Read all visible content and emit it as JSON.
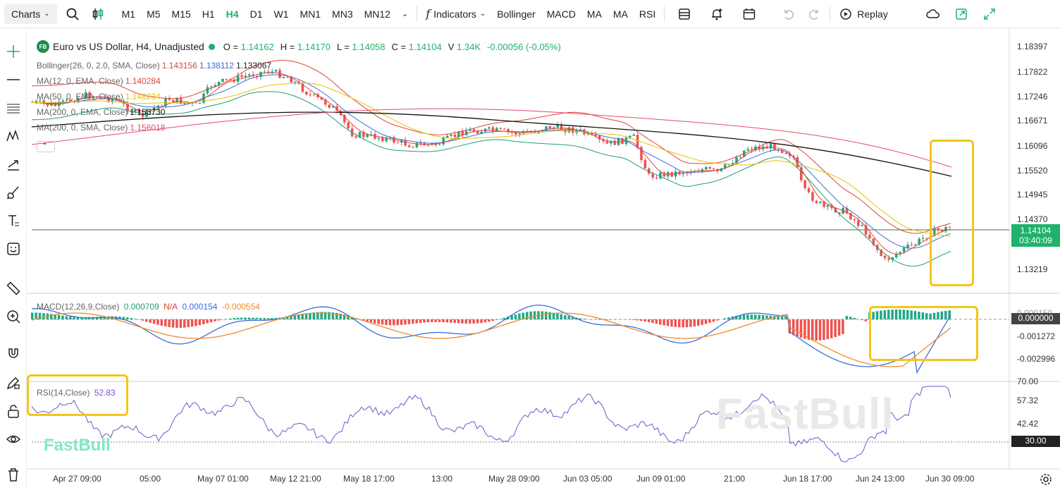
{
  "toolbar": {
    "charts_label": "Charts",
    "timeframes": [
      "M1",
      "M5",
      "M15",
      "H1",
      "H4",
      "D1",
      "W1",
      "MN1",
      "MN3",
      "MN12"
    ],
    "active_timeframe": "H4",
    "indicators_label": "Indicators",
    "indicator_shortcuts": [
      "Bollinger",
      "MACD",
      "MA",
      "MA",
      "RSI"
    ],
    "replay_label": "Replay"
  },
  "symbol": {
    "badge": "FB",
    "title": "Euro vs US Dollar, H4, Unadjusted",
    "open_label": "O =",
    "open": "1.14162",
    "high_label": "H =",
    "high": "1.14170",
    "low_label": "L =",
    "low": "1.14058",
    "close_label": "C =",
    "close": "1.14104",
    "volume_label": "V",
    "volume": "1.34K",
    "change": "-0.00056 (-0.05%)"
  },
  "overlays": [
    {
      "label": "Bollinger(26, 0, 2.0, SMA, Close)",
      "values": [
        "1.143156",
        "1.138112",
        "1.133067"
      ],
      "colors": [
        "#e0443a",
        "#3b6fd8",
        "#222"
      ]
    },
    {
      "label": "MA(12, 0, EMA, Close)",
      "values": [
        "1.140284"
      ],
      "colors": [
        "#e0443a"
      ]
    },
    {
      "label": "MA(50, 0, EMA, Close)",
      "values": [
        "1.148234"
      ],
      "colors": [
        "#e6c200"
      ]
    },
    {
      "label": "MA(200, 0, EMA, Close)",
      "values": [
        "1.153730"
      ],
      "colors": [
        "#111"
      ]
    },
    {
      "label": "MA(200, 0, SMA, Close)",
      "values": [
        "1.156018"
      ],
      "colors": [
        "#e34b6b"
      ]
    }
  ],
  "price_axis": [
    "1.18397",
    "1.17822",
    "1.17246",
    "1.16671",
    "1.16096",
    "1.15520",
    "1.14945",
    "1.14370",
    "1.13219"
  ],
  "current_price": {
    "value": "1.14104",
    "countdown": "03:40:09"
  },
  "macd": {
    "label": "MACD(12,26,9,Close)",
    "values": [
      "0.000709",
      "N/A",
      "0.000154",
      "-0.000554"
    ],
    "colors": [
      "#1f9e7a",
      "#e0443a",
      "#3b6fd8",
      "#f08a2c"
    ],
    "axis": [
      "0.000150",
      "-0.001272",
      "-0.002996"
    ],
    "zero_tag": "0.000000"
  },
  "rsi": {
    "label": "RSI(14,Close)",
    "value": "52.83",
    "axis": [
      "70.00",
      "57.32",
      "42.42"
    ],
    "level_tag": "30.00"
  },
  "time_axis": [
    "Apr 27 09:00",
    "05:00",
    "May 07 01:00",
    "May 12 21:00",
    "May 18 17:00",
    "13:00",
    "May 28 09:00",
    "Jun 03 05:00",
    "Jun 09 01:00",
    "21:00",
    "Jun 18 17:00",
    "Jun 24 13:00",
    "Jun 30 09:00"
  ],
  "watermark": "FastBull",
  "logo": "FastBull",
  "colors": {
    "up": "#22a884",
    "down": "#ef5350",
    "accent": "#1fb26b",
    "highlight": "#f5c518"
  }
}
